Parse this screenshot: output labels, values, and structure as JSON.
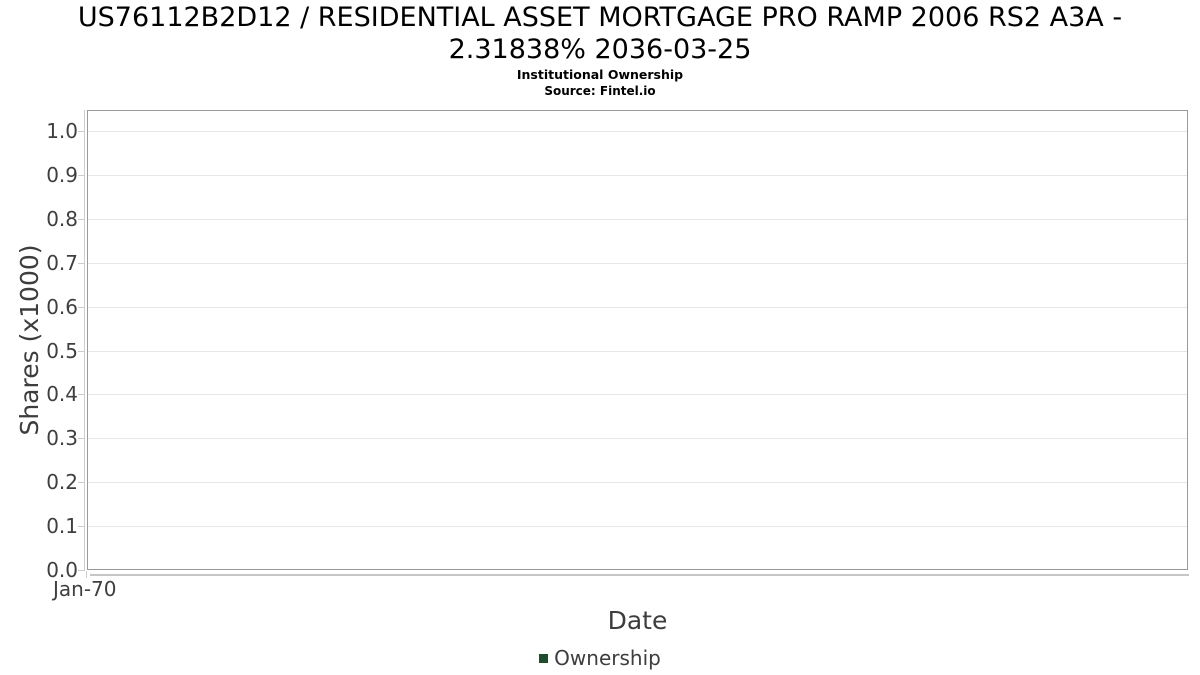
{
  "title": "US76112B2D12 / RESIDENTIAL ASSET MORTGAGE PRO RAMP 2006 RS2 A3A - 2.31838% 2036-03-25",
  "subtitle": "Institutional Ownership",
  "source": "Source: Fintel.io",
  "chart_data": {
    "type": "line",
    "title": "US76112B2D12 / RESIDENTIAL ASSET MORTGAGE PRO RAMP 2006 RS2 A3A - 2.31838% 2036-03-25",
    "subtitle": "Institutional Ownership",
    "source": "Source: Fintel.io",
    "xlabel": "Date",
    "ylabel": "Shares (x1000)",
    "x_ticks": [
      "Jan-70"
    ],
    "y_ticks": [
      "0.0",
      "0.1",
      "0.2",
      "0.3",
      "0.4",
      "0.5",
      "0.6",
      "0.7",
      "0.8",
      "0.9",
      "1.0"
    ],
    "ylim": [
      0.0,
      1.0
    ],
    "grid": true,
    "legend_position": "bottom",
    "series": [
      {
        "name": "Ownership",
        "color": "#1e4d2b",
        "x": [],
        "values": []
      }
    ]
  }
}
